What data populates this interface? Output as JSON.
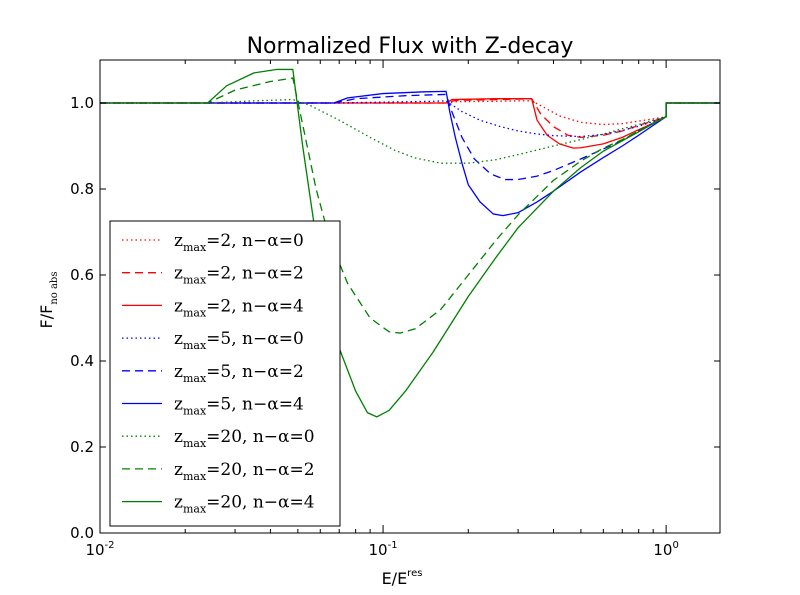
{
  "chart_data": {
    "type": "line",
    "title": "Normalized Flux with Z-decay",
    "xlabel": {
      "base": "E/E",
      "sup": "res"
    },
    "ylabel": {
      "base": "F/F",
      "sub": "no abs"
    },
    "xscale": "log",
    "xlim": [
      0.01,
      1.55
    ],
    "ylim": [
      0.0,
      1.1
    ],
    "xticks": [
      {
        "value": 0.01,
        "base": "10",
        "exp": "-2"
      },
      {
        "value": 0.1,
        "base": "10",
        "exp": "-1"
      },
      {
        "value": 1.0,
        "base": "10",
        "exp": "0"
      }
    ],
    "yticks": [
      "0.0",
      "0.2",
      "0.4",
      "0.6",
      "0.8",
      "1.0"
    ],
    "legend_position": "lower-left",
    "series": [
      {
        "name": "z_max=2, n−α=0",
        "label": {
          "z": "z",
          "sub": "max",
          "rest": "=2, n−α=0"
        },
        "color": "#ff0000",
        "style": "dotted",
        "points": [
          [
            0.01,
            1.0
          ],
          [
            0.167,
            1.0
          ],
          [
            0.18,
            1.003
          ],
          [
            0.25,
            1.004
          ],
          [
            0.3,
            1.005
          ],
          [
            0.335,
            1.005
          ],
          [
            0.37,
            0.99
          ],
          [
            0.42,
            0.97
          ],
          [
            0.5,
            0.955
          ],
          [
            0.6,
            0.95
          ],
          [
            0.7,
            0.952
          ],
          [
            0.8,
            0.958
          ],
          [
            0.9,
            0.963
          ],
          [
            1.0,
            0.968
          ],
          [
            1.0,
            1.0
          ],
          [
            1.55,
            1.0
          ]
        ]
      },
      {
        "name": "z_max=2, n−α=2",
        "label": {
          "z": "z",
          "sub": "max",
          "rest": "=2, n−α=2"
        },
        "color": "#ff0000",
        "style": "dashed",
        "points": [
          [
            0.01,
            1.0
          ],
          [
            0.167,
            1.0
          ],
          [
            0.18,
            1.006
          ],
          [
            0.25,
            1.008
          ],
          [
            0.3,
            1.009
          ],
          [
            0.335,
            1.01
          ],
          [
            0.36,
            0.975
          ],
          [
            0.4,
            0.945
          ],
          [
            0.45,
            0.925
          ],
          [
            0.5,
            0.92
          ],
          [
            0.6,
            0.925
          ],
          [
            0.7,
            0.935
          ],
          [
            0.8,
            0.948
          ],
          [
            0.9,
            0.958
          ],
          [
            1.0,
            0.968
          ],
          [
            1.0,
            1.0
          ],
          [
            1.55,
            1.0
          ]
        ]
      },
      {
        "name": "z_max=2, n−α=4",
        "label": {
          "z": "z",
          "sub": "max",
          "rest": "=2, n−α=4"
        },
        "color": "#ff0000",
        "style": "solid",
        "points": [
          [
            0.01,
            1.0
          ],
          [
            0.167,
            1.0
          ],
          [
            0.175,
            1.008
          ],
          [
            0.25,
            1.01
          ],
          [
            0.3,
            1.01
          ],
          [
            0.335,
            1.01
          ],
          [
            0.35,
            0.96
          ],
          [
            0.38,
            0.925
          ],
          [
            0.42,
            0.905
          ],
          [
            0.47,
            0.895
          ],
          [
            0.5,
            0.896
          ],
          [
            0.6,
            0.905
          ],
          [
            0.7,
            0.92
          ],
          [
            0.8,
            0.938
          ],
          [
            0.9,
            0.953
          ],
          [
            1.0,
            0.968
          ],
          [
            1.0,
            1.0
          ],
          [
            1.55,
            1.0
          ]
        ]
      },
      {
        "name": "z_max=5, n−α=0",
        "label": {
          "z": "z",
          "sub": "max",
          "rest": "=5, n−α=0"
        },
        "color": "#0000ff",
        "style": "dotted",
        "points": [
          [
            0.01,
            1.0
          ],
          [
            0.067,
            1.0
          ],
          [
            0.1,
            1.002
          ],
          [
            0.15,
            1.004
          ],
          [
            0.167,
            1.005
          ],
          [
            0.19,
            0.98
          ],
          [
            0.22,
            0.96
          ],
          [
            0.26,
            0.945
          ],
          [
            0.3,
            0.935
          ],
          [
            0.35,
            0.928
          ],
          [
            0.4,
            0.924
          ],
          [
            0.5,
            0.922
          ],
          [
            0.6,
            0.927
          ],
          [
            0.7,
            0.936
          ],
          [
            0.8,
            0.946
          ],
          [
            0.9,
            0.957
          ],
          [
            1.0,
            0.968
          ],
          [
            1.0,
            1.0
          ],
          [
            1.55,
            1.0
          ]
        ]
      },
      {
        "name": "z_max=5, n−α=2",
        "label": {
          "z": "z",
          "sub": "max",
          "rest": "=5, n−α=2"
        },
        "color": "#0000ff",
        "style": "dashed",
        "points": [
          [
            0.01,
            1.0
          ],
          [
            0.067,
            1.0
          ],
          [
            0.08,
            1.01
          ],
          [
            0.12,
            1.017
          ],
          [
            0.167,
            1.02
          ],
          [
            0.175,
            0.98
          ],
          [
            0.19,
            0.92
          ],
          [
            0.21,
            0.87
          ],
          [
            0.24,
            0.835
          ],
          [
            0.27,
            0.822
          ],
          [
            0.3,
            0.822
          ],
          [
            0.35,
            0.83
          ],
          [
            0.4,
            0.843
          ],
          [
            0.5,
            0.87
          ],
          [
            0.6,
            0.893
          ],
          [
            0.7,
            0.913
          ],
          [
            0.8,
            0.935
          ],
          [
            0.9,
            0.953
          ],
          [
            1.0,
            0.968
          ],
          [
            1.0,
            1.0
          ],
          [
            1.55,
            1.0
          ]
        ]
      },
      {
        "name": "z_max=5, n−α=4",
        "label": {
          "z": "z",
          "sub": "max",
          "rest": "=5, n−α=4"
        },
        "color": "#0000ff",
        "style": "solid",
        "points": [
          [
            0.01,
            1.0
          ],
          [
            0.067,
            1.0
          ],
          [
            0.075,
            1.012
          ],
          [
            0.1,
            1.022
          ],
          [
            0.14,
            1.026
          ],
          [
            0.167,
            1.027
          ],
          [
            0.172,
            0.98
          ],
          [
            0.18,
            0.92
          ],
          [
            0.19,
            0.86
          ],
          [
            0.2,
            0.81
          ],
          [
            0.22,
            0.77
          ],
          [
            0.245,
            0.742
          ],
          [
            0.265,
            0.738
          ],
          [
            0.3,
            0.745
          ],
          [
            0.35,
            0.77
          ],
          [
            0.4,
            0.795
          ],
          [
            0.5,
            0.84
          ],
          [
            0.6,
            0.873
          ],
          [
            0.7,
            0.9
          ],
          [
            0.8,
            0.925
          ],
          [
            0.9,
            0.948
          ],
          [
            1.0,
            0.968
          ],
          [
            1.0,
            1.0
          ],
          [
            1.55,
            1.0
          ]
        ]
      },
      {
        "name": "z_max=20, n−α=0",
        "label": {
          "z": "z",
          "sub": "max",
          "rest": "=20, n−α=0"
        },
        "color": "#008000",
        "style": "dotted",
        "points": [
          [
            0.01,
            1.0
          ],
          [
            0.024,
            1.0
          ],
          [
            0.035,
            1.005
          ],
          [
            0.048,
            1.008
          ],
          [
            0.055,
            0.995
          ],
          [
            0.07,
            0.96
          ],
          [
            0.09,
            0.92
          ],
          [
            0.11,
            0.89
          ],
          [
            0.13,
            0.872
          ],
          [
            0.16,
            0.86
          ],
          [
            0.2,
            0.86
          ],
          [
            0.25,
            0.868
          ],
          [
            0.3,
            0.88
          ],
          [
            0.4,
            0.9
          ],
          [
            0.5,
            0.915
          ],
          [
            0.6,
            0.928
          ],
          [
            0.7,
            0.94
          ],
          [
            0.8,
            0.95
          ],
          [
            0.9,
            0.96
          ],
          [
            1.0,
            0.968
          ],
          [
            1.0,
            1.0
          ],
          [
            1.55,
            1.0
          ]
        ]
      },
      {
        "name": "z_max=20, n−α=2",
        "label": {
          "z": "z",
          "sub": "max",
          "rest": "=20, n−α=2"
        },
        "color": "#008000",
        "style": "dashed",
        "points": [
          [
            0.01,
            1.0
          ],
          [
            0.024,
            1.0
          ],
          [
            0.03,
            1.03
          ],
          [
            0.04,
            1.05
          ],
          [
            0.048,
            1.058
          ],
          [
            0.052,
            0.95
          ],
          [
            0.058,
            0.8
          ],
          [
            0.065,
            0.68
          ],
          [
            0.075,
            0.58
          ],
          [
            0.09,
            0.5
          ],
          [
            0.105,
            0.468
          ],
          [
            0.115,
            0.465
          ],
          [
            0.13,
            0.475
          ],
          [
            0.16,
            0.52
          ],
          [
            0.2,
            0.6
          ],
          [
            0.25,
            0.68
          ],
          [
            0.3,
            0.74
          ],
          [
            0.4,
            0.82
          ],
          [
            0.5,
            0.865
          ],
          [
            0.6,
            0.895
          ],
          [
            0.7,
            0.915
          ],
          [
            0.8,
            0.935
          ],
          [
            0.9,
            0.953
          ],
          [
            1.0,
            0.968
          ],
          [
            1.0,
            1.0
          ],
          [
            1.55,
            1.0
          ]
        ]
      },
      {
        "name": "z_max=20, n−α=4",
        "label": {
          "z": "z",
          "sub": "max",
          "rest": "=20, n−α=4"
        },
        "color": "#008000",
        "style": "solid",
        "points": [
          [
            0.01,
            1.0
          ],
          [
            0.024,
            1.0
          ],
          [
            0.028,
            1.04
          ],
          [
            0.035,
            1.07
          ],
          [
            0.042,
            1.078
          ],
          [
            0.048,
            1.078
          ],
          [
            0.052,
            0.9
          ],
          [
            0.057,
            0.72
          ],
          [
            0.063,
            0.56
          ],
          [
            0.07,
            0.43
          ],
          [
            0.08,
            0.33
          ],
          [
            0.088,
            0.28
          ],
          [
            0.095,
            0.27
          ],
          [
            0.105,
            0.285
          ],
          [
            0.12,
            0.33
          ],
          [
            0.15,
            0.42
          ],
          [
            0.2,
            0.55
          ],
          [
            0.25,
            0.64
          ],
          [
            0.3,
            0.71
          ],
          [
            0.4,
            0.795
          ],
          [
            0.5,
            0.85
          ],
          [
            0.6,
            0.888
          ],
          [
            0.7,
            0.912
          ],
          [
            0.8,
            0.933
          ],
          [
            0.9,
            0.952
          ],
          [
            1.0,
            0.968
          ],
          [
            1.0,
            1.0
          ],
          [
            1.55,
            1.0
          ]
        ]
      }
    ]
  }
}
